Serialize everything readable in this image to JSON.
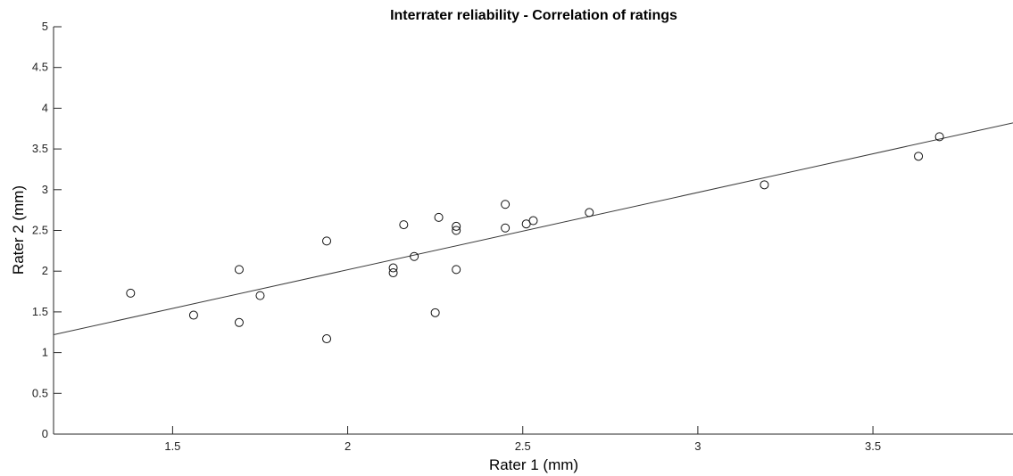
{
  "chart_data": {
    "type": "scatter",
    "title": "Interrater reliability - Correlation of ratings",
    "xlabel": "Rater 1 (mm)",
    "ylabel": "Rater 2 (mm)",
    "xlim": [
      1.16,
      3.9
    ],
    "ylim": [
      0,
      5
    ],
    "xticks": [
      1.5,
      2,
      2.5,
      3,
      3.5
    ],
    "xtick_labels": [
      "1.5",
      "2",
      "2.5",
      "3",
      "3.5"
    ],
    "yticks": [
      0,
      0.5,
      1,
      1.5,
      2,
      2.5,
      3,
      3.5,
      4,
      4.5,
      5
    ],
    "ytick_labels": [
      "0",
      "0.5",
      "1",
      "1.5",
      "2",
      "2.5",
      "3",
      "3.5",
      "4",
      "4.5",
      "5"
    ],
    "grid": false,
    "marker": "open-circle",
    "points": [
      {
        "x": 1.38,
        "y": 1.73
      },
      {
        "x": 1.56,
        "y": 1.46
      },
      {
        "x": 1.69,
        "y": 2.02
      },
      {
        "x": 1.69,
        "y": 1.37
      },
      {
        "x": 1.75,
        "y": 1.7
      },
      {
        "x": 1.94,
        "y": 2.37
      },
      {
        "x": 1.94,
        "y": 1.17
      },
      {
        "x": 2.13,
        "y": 2.04
      },
      {
        "x": 2.13,
        "y": 1.98
      },
      {
        "x": 2.16,
        "y": 2.57
      },
      {
        "x": 2.19,
        "y": 2.18
      },
      {
        "x": 2.25,
        "y": 1.49
      },
      {
        "x": 2.26,
        "y": 2.66
      },
      {
        "x": 2.31,
        "y": 2.55
      },
      {
        "x": 2.31,
        "y": 2.5
      },
      {
        "x": 2.31,
        "y": 2.02
      },
      {
        "x": 2.45,
        "y": 2.82
      },
      {
        "x": 2.45,
        "y": 2.53
      },
      {
        "x": 2.51,
        "y": 2.58
      },
      {
        "x": 2.53,
        "y": 2.62
      },
      {
        "x": 2.69,
        "y": 2.72
      },
      {
        "x": 3.19,
        "y": 3.06
      },
      {
        "x": 3.63,
        "y": 3.41
      },
      {
        "x": 3.69,
        "y": 3.65
      }
    ],
    "fit_line": {
      "x": [
        1.16,
        3.9
      ],
      "y": [
        1.22,
        3.82
      ]
    }
  }
}
